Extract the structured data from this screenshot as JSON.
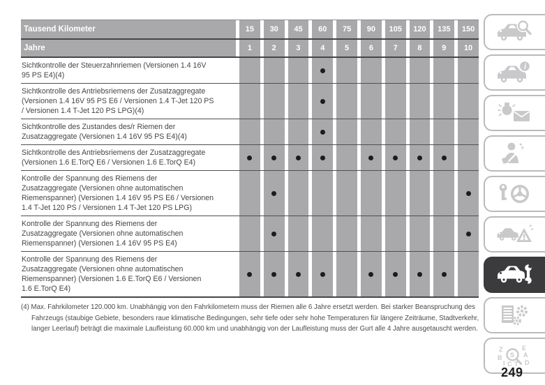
{
  "page": {
    "number": "249"
  },
  "table": {
    "header_km_label": "Tausend Kilometer",
    "header_years_label": "Jahre",
    "km_values": [
      "15",
      "30",
      "45",
      "60",
      "75",
      "90",
      "105",
      "120",
      "135",
      "150"
    ],
    "year_values": [
      "1",
      "2",
      "3",
      "4",
      "5",
      "6",
      "7",
      "8",
      "9",
      "10"
    ],
    "rows": [
      {
        "task": "Sichtkontrolle der Steuerzahnriemen (Versionen 1.4 16V\n95 PS E4)(4)",
        "dots": [
          0,
          0,
          0,
          1,
          0,
          0,
          0,
          0,
          0,
          0
        ]
      },
      {
        "task": "Sichtkontrolle des Antriebsriemens der Zusatzaggregate\n(Versionen 1.4 16V 95 PS E6 / Versionen 1.4 T-Jet 120 PS\n/ Versionen 1.4 T-Jet 120 PS LPG)(4)",
        "dots": [
          0,
          0,
          0,
          1,
          0,
          0,
          0,
          0,
          0,
          0
        ]
      },
      {
        "task": "Sichtkontrolle des Zustandes des/r Riemen der\nZusatzaggregate (Versionen 1.4 16V 95 PS E4)(4)",
        "dots": [
          0,
          0,
          0,
          1,
          0,
          0,
          0,
          0,
          0,
          0
        ]
      },
      {
        "task": "Sichtkontrolle des Antriebsriemens der Zusatzaggregate\n(Versionen 1.6 E.TorQ E6 / Versionen 1.6 E.TorQ E4)",
        "dots": [
          1,
          1,
          1,
          1,
          0,
          1,
          1,
          1,
          1,
          0
        ]
      },
      {
        "task": "Kontrolle der Spannung des Riemens der\nZusatzaggregate (Versionen ohne automatischen\nRiemenspanner) (Versionen 1.4 16V 95 PS E6 / Versionen\n1.4 T-Jet 120 PS / Versionen 1.4 T-Jet 120 PS LPG)",
        "dots": [
          0,
          1,
          0,
          0,
          0,
          0,
          0,
          0,
          0,
          1
        ]
      },
      {
        "task": "Kontrolle der Spannung des Riemens der\nZusatzaggregate (Versionen ohne automatischen\nRiemenspanner) (Versionen 1.4 16V 95 PS E4)",
        "dots": [
          0,
          1,
          0,
          0,
          0,
          0,
          0,
          0,
          0,
          1
        ]
      },
      {
        "task": "Kontrolle der Spannung des Riemens der\nZusatzaggregate (Versionen ohne automatischen\nRiemenspanner) (Versionen 1.6 E.TorQ E6 / Versionen\n1.6 E.TorQ E4)",
        "dots": [
          1,
          1,
          1,
          1,
          0,
          1,
          1,
          1,
          1,
          0
        ]
      }
    ]
  },
  "footnote": "(4) Max. Fahrkilometer 120.000 km. Unabhängig von den Fahrkilometern muss der Riemen alle 6 Jahre ersetzt werden. Bei starker Beanspruchung des Fahrzeugs (staubige Gebiete, besonders raue klimatische Bedingungen, sehr tiefe oder sehr hohe Temperaturen für längere Zeiträume, Stadtverkehr, langer Leerlauf) beträgt die maximale Laufleistung 60.000 km und unabhängig von der Laufleistung muss der Gurt alle 4 Jahre ausgetauscht werden.",
  "sidebar": {
    "items": [
      {
        "icon": "car-magnifier-icon",
        "active": false
      },
      {
        "icon": "car-info-icon",
        "active": false
      },
      {
        "icon": "warning-light-envelope-icon",
        "active": false
      },
      {
        "icon": "person-seatbelt-airbag-icon",
        "active": false
      },
      {
        "icon": "key-steering-wheel-icon",
        "active": false
      },
      {
        "icon": "car-warning-triangle-icon",
        "active": false
      },
      {
        "icon": "car-wrench-icon",
        "active": true
      },
      {
        "icon": "document-gears-icon",
        "active": false
      },
      {
        "icon": "letters-magnifier-icon",
        "active": false
      }
    ]
  },
  "colors": {
    "table_gray": "#a9a9ab",
    "separator_dark": "#454547",
    "body_text": "#48484a",
    "dot": "#1c1c1e",
    "active_tab": "#3b3b3d",
    "tab_border": "#b9babc",
    "icon_gray": "#c9c9cb"
  }
}
